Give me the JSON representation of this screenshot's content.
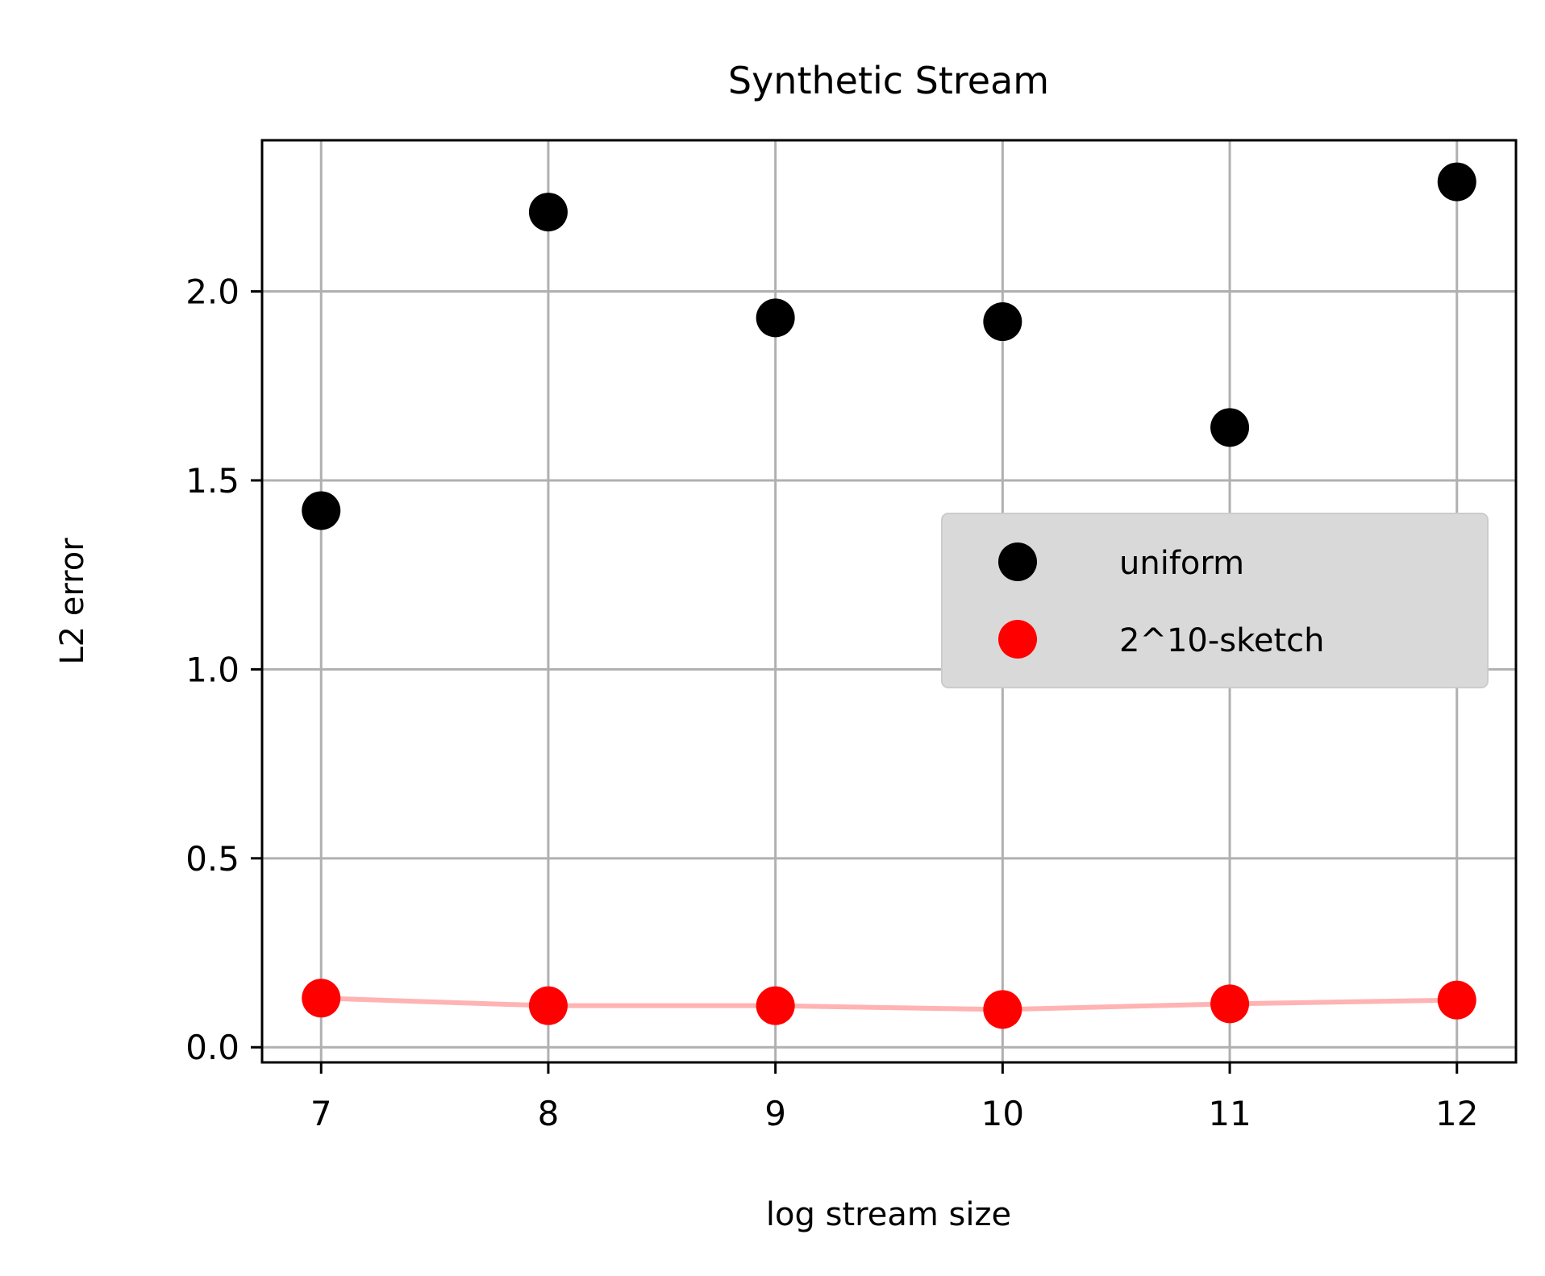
{
  "chart_data": {
    "type": "scatter",
    "title": "Synthetic Stream",
    "xlabel": "log stream size",
    "ylabel": "L2 error",
    "xlim": [
      6.74,
      12.26
    ],
    "ylim": [
      -0.04,
      2.4
    ],
    "xticks": [
      7,
      8,
      9,
      10,
      11,
      12
    ],
    "xtick_labels": [
      "7",
      "8",
      "9",
      "10",
      "11",
      "12"
    ],
    "yticks": [
      0.0,
      0.5,
      1.0,
      1.5,
      2.0
    ],
    "ytick_labels": [
      "0.0",
      "0.5",
      "1.0",
      "1.5",
      "2.0"
    ],
    "grid": true,
    "legend_position": "center-right",
    "series": [
      {
        "name": "uniform",
        "color": "#000000",
        "x": [
          7,
          8,
          9,
          10,
          11,
          12
        ],
        "y": [
          1.42,
          2.21,
          1.93,
          1.92,
          1.64,
          2.29
        ],
        "connecting_line": false
      },
      {
        "name": "2^10-sketch",
        "color": "#ff0000",
        "line_color": "#ffb3b3",
        "x": [
          7,
          8,
          9,
          10,
          11,
          12
        ],
        "y": [
          0.13,
          0.11,
          0.11,
          0.1,
          0.115,
          0.125
        ],
        "connecting_line": true
      }
    ]
  }
}
